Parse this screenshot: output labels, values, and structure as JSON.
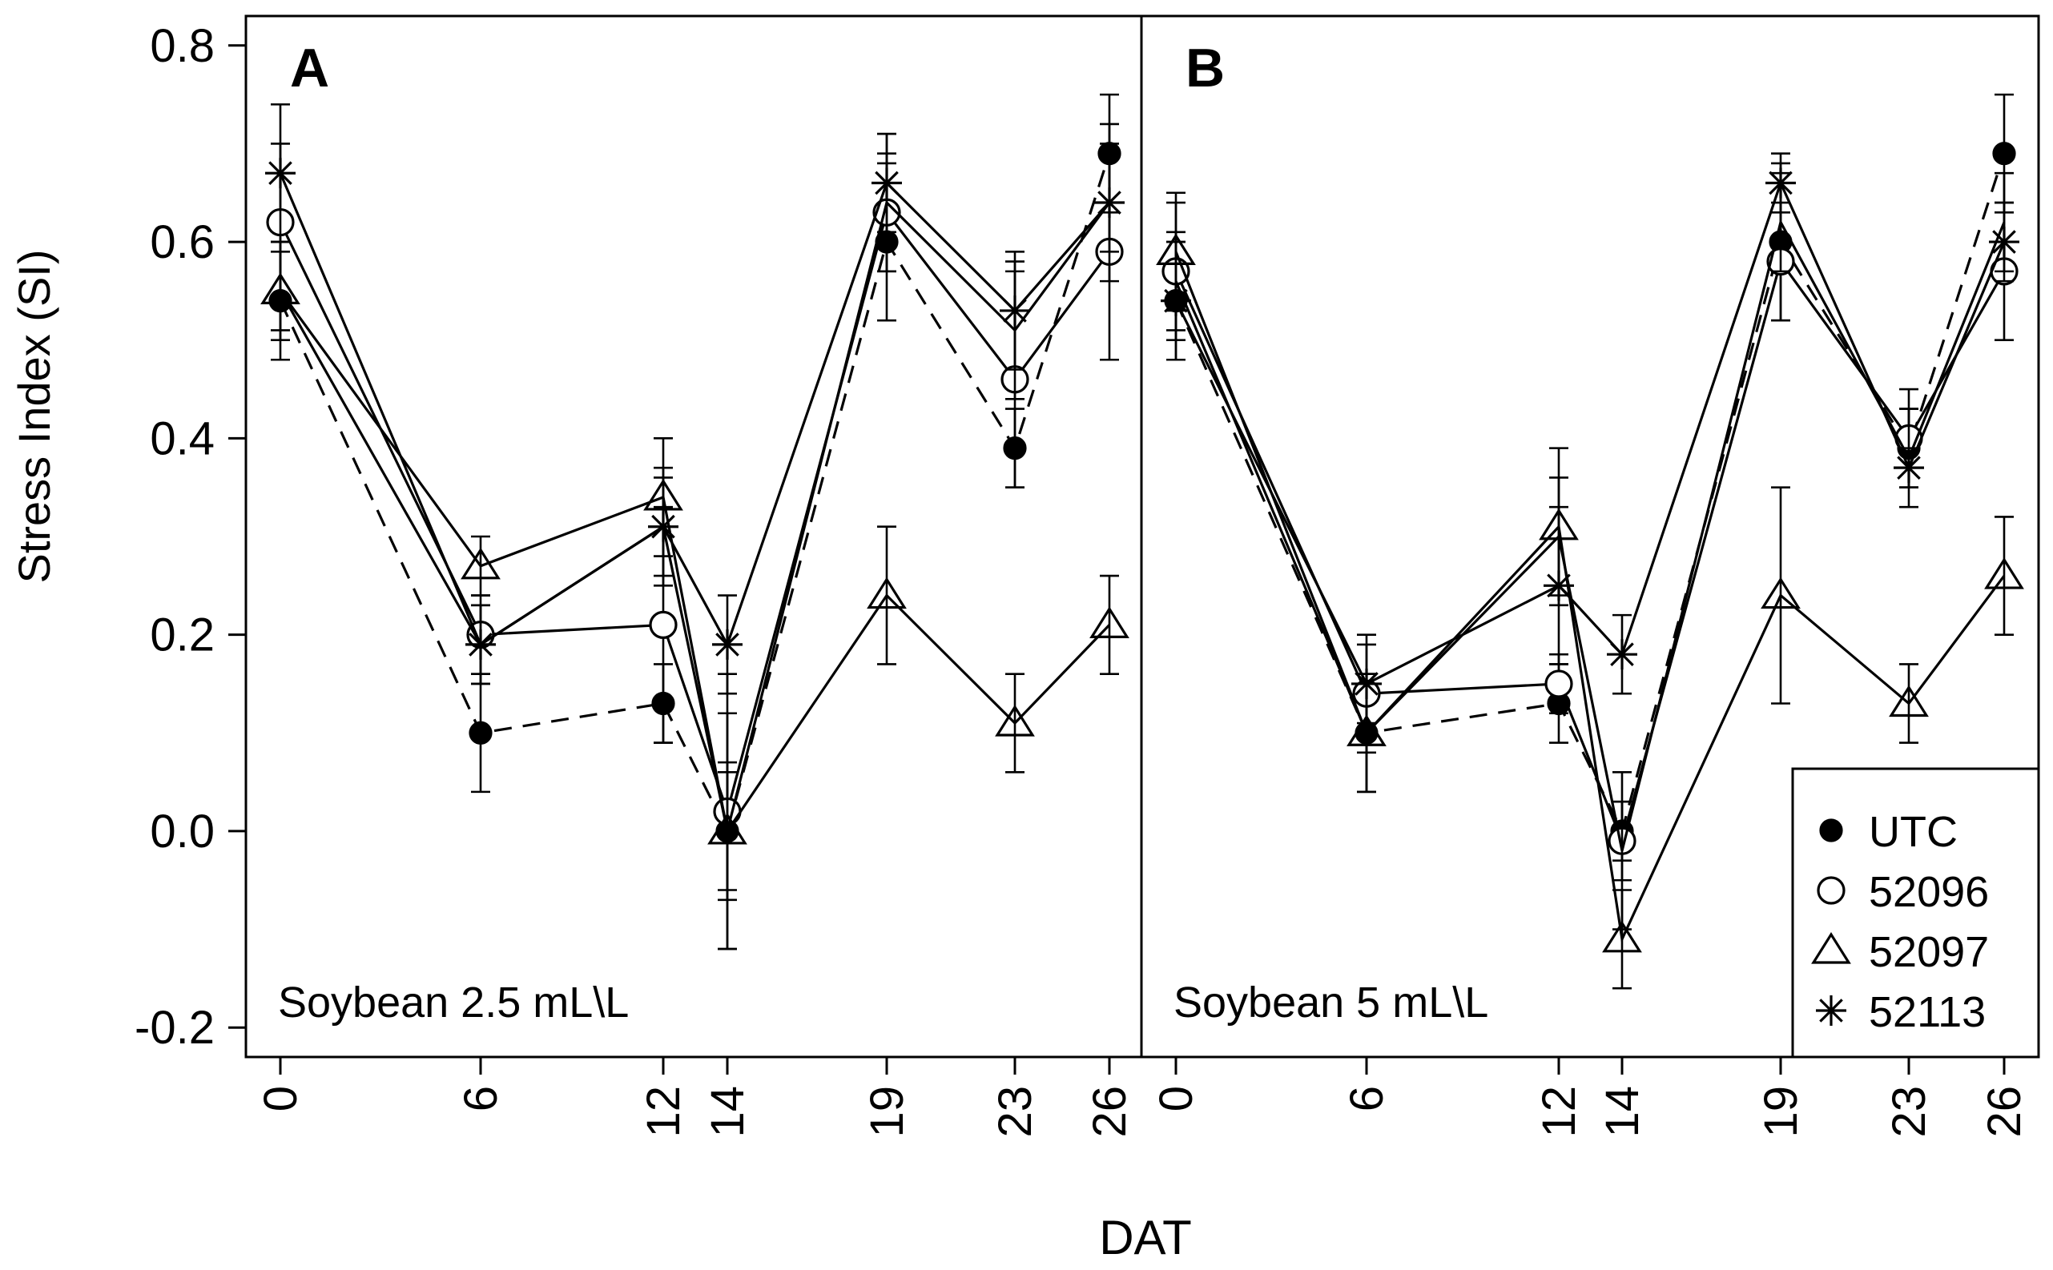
{
  "chart_data": {
    "type": "line",
    "xlabel": "DAT",
    "ylabel": "Stress Index (SI)",
    "ylim": [
      -0.23,
      0.83
    ],
    "y_ticks": [
      "-0.2",
      "0.0",
      "0.2",
      "0.4",
      "0.6",
      "0.8"
    ],
    "y_tick_values": [
      -0.2,
      0.0,
      0.2,
      0.4,
      0.6,
      0.8
    ],
    "x": [
      0,
      6,
      12,
      14,
      19,
      23,
      26
    ],
    "x_tick_labels": [
      "0",
      "6",
      "12",
      "14",
      "19",
      "23",
      "26"
    ],
    "legend": {
      "placement": "bottom-right of panel B",
      "entries": [
        {
          "name": "UTC",
          "marker": "filled-circle"
        },
        {
          "name": "52096",
          "marker": "open-circle"
        },
        {
          "name": "52097",
          "marker": "open-triangle"
        },
        {
          "name": "52113",
          "marker": "asterisk"
        }
      ]
    },
    "panels": [
      {
        "letter": "A",
        "label": "Soybean 2.5 mL\\L",
        "series": [
          {
            "name": "UTC",
            "marker": "filled-circle",
            "dash": true,
            "values": [
              0.54,
              0.1,
              0.13,
              0.0,
              0.6,
              0.39,
              0.69
            ],
            "errors": [
              0.06,
              0.06,
              0.04,
              0.07,
              0.08,
              0.04,
              0.06
            ]
          },
          {
            "name": "52096",
            "marker": "open-circle",
            "dash": false,
            "values": [
              0.62,
              0.2,
              0.21,
              0.02,
              0.63,
              0.46,
              0.59
            ],
            "errors": [
              0.08,
              0.04,
              0.12,
              0.14,
              0.06,
              0.11,
              0.11
            ]
          },
          {
            "name": "52097",
            "marker": "open-triangle",
            "dash": false,
            "values": [
              0.55,
              0.27,
              0.34,
              0.0,
              0.24,
              0.11,
              0.21
            ],
            "errors": [
              0.05,
              0.03,
              0.06,
              0.06,
              0.07,
              0.05,
              0.05
            ]
          },
          {
            "name": "52097",
            "marker": "open-triangle",
            "dash": false,
            "values": [
              0.55,
              0.19,
              0.31,
              0.0,
              0.64,
              0.51,
              0.64
            ],
            "errors": [
              0.04,
              0.04,
              0.06,
              0.12,
              0.07,
              0.07,
              0.05
            ],
            "hidden_markers": true
          },
          {
            "name": "52113",
            "marker": "asterisk",
            "dash": false,
            "values": [
              0.67,
              0.19,
              0.31,
              0.19,
              0.66,
              0.53,
              0.64
            ],
            "errors": [
              0.07,
              0.04,
              0.05,
              0.05,
              0.05,
              0.06,
              0.08
            ]
          }
        ]
      },
      {
        "letter": "B",
        "label": "Soybean 5 mL\\L",
        "series": [
          {
            "name": "UTC",
            "marker": "filled-circle",
            "dash": true,
            "values": [
              0.54,
              0.1,
              0.13,
              0.0,
              0.6,
              0.39,
              0.69
            ],
            "errors": [
              0.06,
              0.06,
              0.04,
              0.03,
              0.08,
              0.04,
              0.06
            ]
          },
          {
            "name": "52096",
            "marker": "open-circle",
            "dash": false,
            "values": [
              0.57,
              0.14,
              0.15,
              -0.01,
              0.58,
              0.4,
              0.57
            ],
            "errors": [
              0.07,
              0.06,
              0.03,
              0.04,
              0.06,
              0.05,
              0.07
            ]
          },
          {
            "name": "52097",
            "marker": "open-triangle",
            "dash": false,
            "values": [
              0.59,
              0.1,
              0.31,
              -0.11,
              0.24,
              0.13,
              0.26
            ],
            "errors": [
              0.06,
              0.06,
              0.08,
              0.05,
              0.11,
              0.04,
              0.06
            ]
          },
          {
            "name": "52097",
            "marker": "open-triangle",
            "dash": false,
            "values": [
              0.56,
              0.1,
              0.3,
              -0.02,
              0.62,
              0.38,
              0.62
            ],
            "errors": [
              0.05,
              0.06,
              0.06,
              0.08,
              0.05,
              0.05,
              0.05
            ],
            "hidden_markers": true
          },
          {
            "name": "52113",
            "marker": "asterisk",
            "dash": false,
            "values": [
              0.54,
              0.15,
              0.25,
              0.18,
              0.66,
              0.37,
              0.6
            ],
            "errors": [
              0.06,
              0.04,
              0.08,
              0.04,
              0.03,
              0.02,
              0.04
            ]
          }
        ]
      }
    ]
  }
}
